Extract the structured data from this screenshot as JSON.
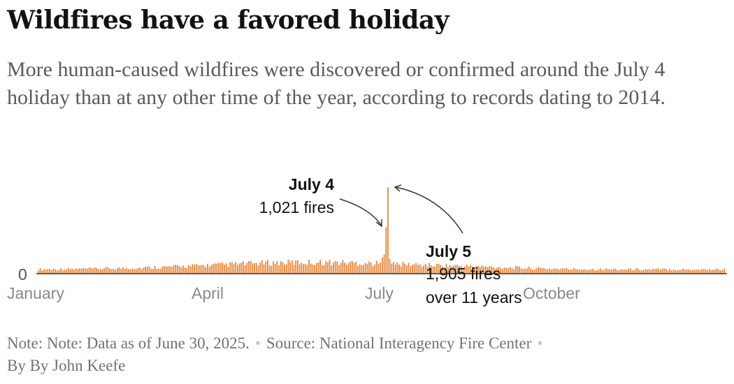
{
  "header": {
    "title": "Wildfires have a favored holiday",
    "subtitle": "More human-caused wildfires were discovered or confirmed around the July 4 holiday than at any other time of the year, according to records dating to 2014."
  },
  "chart_data": {
    "type": "bar",
    "y_tick_label": "0",
    "x_tick_labels": [
      "January",
      "April",
      "July",
      "October"
    ],
    "bar_color": "#e8873a",
    "annotations": [
      {
        "title": "July 4",
        "text": "1,021 fires",
        "day": 185,
        "value": 1021
      },
      {
        "title": "July 5",
        "text_lines": [
          "1,905 fires",
          "over 11 years"
        ],
        "day": 186,
        "value": 1905
      }
    ]
  },
  "footer": {
    "note": "Note: Note: Data as of June 30, 2025.",
    "source": "Source: National Interagency Fire Center",
    "byline": "By By John Keefe",
    "separator": "•"
  }
}
